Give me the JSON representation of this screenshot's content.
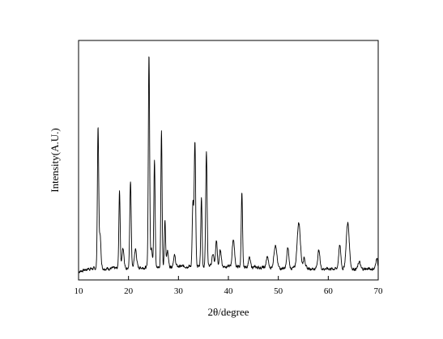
{
  "chart_data": {
    "type": "line",
    "xlabel": "2θ/degree",
    "ylabel": "Intensity(A.U.)",
    "xlim": [
      10,
      70
    ],
    "xticks": [
      "10",
      "20",
      "30",
      "40",
      "50",
      "60",
      "70"
    ],
    "grid": false,
    "legend": "none",
    "y_tick_labels_shown": false,
    "line_color": "#000000",
    "baseline": 12,
    "noise_amplitude": 1.6,
    "peaks": [
      {
        "x": 13.9,
        "y": 150,
        "w": 0.13
      },
      {
        "x": 14.3,
        "y": 36,
        "w": 0.18
      },
      {
        "x": 18.2,
        "y": 84,
        "w": 0.13
      },
      {
        "x": 18.9,
        "y": 22,
        "w": 0.2
      },
      {
        "x": 20.4,
        "y": 95,
        "w": 0.14
      },
      {
        "x": 21.4,
        "y": 20,
        "w": 0.22
      },
      {
        "x": 24.1,
        "y": 230,
        "w": 0.13
      },
      {
        "x": 24.6,
        "y": 20,
        "w": 0.2
      },
      {
        "x": 25.2,
        "y": 115,
        "w": 0.13
      },
      {
        "x": 26.6,
        "y": 148,
        "w": 0.12
      },
      {
        "x": 27.3,
        "y": 50,
        "w": 0.12
      },
      {
        "x": 27.8,
        "y": 18,
        "w": 0.18
      },
      {
        "x": 29.2,
        "y": 12,
        "w": 0.2
      },
      {
        "x": 32.9,
        "y": 68,
        "w": 0.14
      },
      {
        "x": 33.3,
        "y": 135,
        "w": 0.14
      },
      {
        "x": 34.6,
        "y": 74,
        "w": 0.13
      },
      {
        "x": 35.6,
        "y": 125,
        "w": 0.14
      },
      {
        "x": 36.9,
        "y": 14,
        "w": 0.18
      },
      {
        "x": 37.6,
        "y": 28,
        "w": 0.16
      },
      {
        "x": 38.4,
        "y": 18,
        "w": 0.18
      },
      {
        "x": 41.0,
        "y": 30,
        "w": 0.22
      },
      {
        "x": 42.7,
        "y": 80,
        "w": 0.13
      },
      {
        "x": 44.2,
        "y": 10,
        "w": 0.2
      },
      {
        "x": 47.8,
        "y": 12,
        "w": 0.2
      },
      {
        "x": 49.4,
        "y": 25,
        "w": 0.28
      },
      {
        "x": 51.9,
        "y": 22,
        "w": 0.2
      },
      {
        "x": 54.1,
        "y": 50,
        "w": 0.32
      },
      {
        "x": 55.2,
        "y": 12,
        "w": 0.2
      },
      {
        "x": 58.1,
        "y": 20,
        "w": 0.22
      },
      {
        "x": 62.3,
        "y": 25,
        "w": 0.22
      },
      {
        "x": 63.9,
        "y": 50,
        "w": 0.3
      },
      {
        "x": 66.2,
        "y": 8,
        "w": 0.2
      },
      {
        "x": 69.7,
        "y": 12,
        "w": 0.18
      }
    ],
    "ylim": [
      0,
      260
    ]
  }
}
